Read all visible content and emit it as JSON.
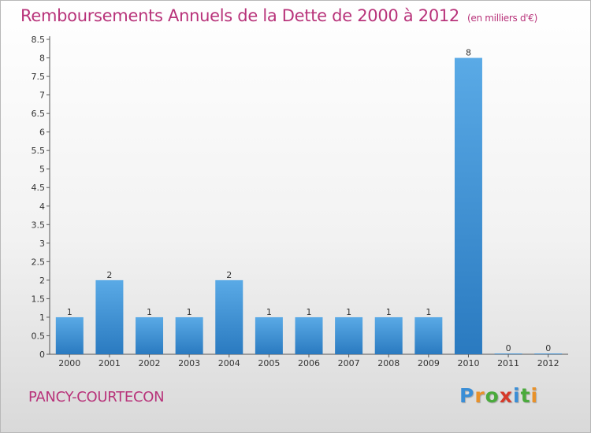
{
  "title": "Remboursements Annuels de la Dette de 2000 à 2012",
  "subtitle": "(en milliers d'€)",
  "commune": "PANCY-COURTECON",
  "brand": {
    "letters": [
      {
        "ch": "P",
        "color": "#3a8ed6"
      },
      {
        "ch": "r",
        "color": "#e8912a"
      },
      {
        "ch": "o",
        "color": "#4aaa3c"
      },
      {
        "ch": "x",
        "color": "#d63a2a"
      },
      {
        "ch": "i",
        "color": "#3a8ed6"
      },
      {
        "ch": "t",
        "color": "#4aaa3c"
      },
      {
        "ch": "i",
        "color": "#e8912a"
      }
    ]
  },
  "colors": {
    "title": "#b8337a",
    "bar_top": "#5aaae6",
    "bar_bottom": "#2a7ac0"
  },
  "chart_data": {
    "type": "bar",
    "title": "Remboursements Annuels de la Dette de 2000 à 2012",
    "subtitle": "(en milliers d'€)",
    "categories": [
      "2000",
      "2001",
      "2002",
      "2003",
      "2004",
      "2005",
      "2006",
      "2007",
      "2008",
      "2009",
      "2010",
      "2011",
      "2012"
    ],
    "values": [
      1,
      2,
      1,
      1,
      2,
      1,
      1,
      1,
      1,
      1,
      8,
      0,
      0
    ],
    "data_labels": [
      "1",
      "2",
      "1",
      "1",
      "2",
      "1",
      "1",
      "1",
      "1",
      "1",
      "8",
      "0",
      "0"
    ],
    "ylim": [
      0,
      8.5
    ],
    "yticks": [
      "0",
      "0.5",
      "1",
      "1.5",
      "2",
      "2.5",
      "3",
      "3.5",
      "4",
      "4.5",
      "5",
      "5.5",
      "6",
      "6.5",
      "7",
      "7.5",
      "8",
      "8.5"
    ],
    "grid": false,
    "legend": "none"
  }
}
